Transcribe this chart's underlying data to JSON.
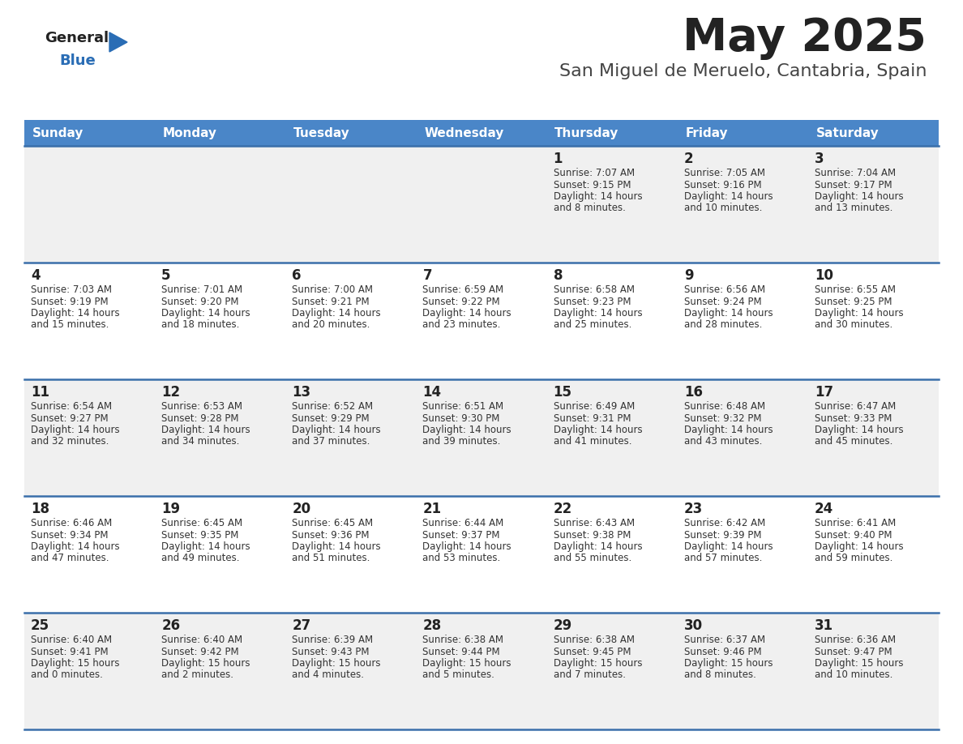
{
  "title": "May 2025",
  "subtitle": "San Miguel de Meruelo, Cantabria, Spain",
  "days_of_week": [
    "Sunday",
    "Monday",
    "Tuesday",
    "Wednesday",
    "Thursday",
    "Friday",
    "Saturday"
  ],
  "header_bg": "#4a86c8",
  "header_text": "#ffffff",
  "row_bg_odd": "#f0f0f0",
  "row_bg_even": "#ffffff",
  "separator_color": "#3a6faa",
  "day_num_color": "#222222",
  "cell_text_color": "#333333",
  "title_color": "#222222",
  "subtitle_color": "#444444",
  "logo_general_color": "#222222",
  "logo_blue_color": "#2a6db5",
  "calendar": [
    [
      null,
      null,
      null,
      null,
      {
        "day": 1,
        "sunrise": "7:07 AM",
        "sunset": "9:15 PM",
        "daylight_h": "14 hours",
        "daylight_m": "and 8 minutes."
      },
      {
        "day": 2,
        "sunrise": "7:05 AM",
        "sunset": "9:16 PM",
        "daylight_h": "14 hours",
        "daylight_m": "and 10 minutes."
      },
      {
        "day": 3,
        "sunrise": "7:04 AM",
        "sunset": "9:17 PM",
        "daylight_h": "14 hours",
        "daylight_m": "and 13 minutes."
      }
    ],
    [
      {
        "day": 4,
        "sunrise": "7:03 AM",
        "sunset": "9:19 PM",
        "daylight_h": "14 hours",
        "daylight_m": "and 15 minutes."
      },
      {
        "day": 5,
        "sunrise": "7:01 AM",
        "sunset": "9:20 PM",
        "daylight_h": "14 hours",
        "daylight_m": "and 18 minutes."
      },
      {
        "day": 6,
        "sunrise": "7:00 AM",
        "sunset": "9:21 PM",
        "daylight_h": "14 hours",
        "daylight_m": "and 20 minutes."
      },
      {
        "day": 7,
        "sunrise": "6:59 AM",
        "sunset": "9:22 PM",
        "daylight_h": "14 hours",
        "daylight_m": "and 23 minutes."
      },
      {
        "day": 8,
        "sunrise": "6:58 AM",
        "sunset": "9:23 PM",
        "daylight_h": "14 hours",
        "daylight_m": "and 25 minutes."
      },
      {
        "day": 9,
        "sunrise": "6:56 AM",
        "sunset": "9:24 PM",
        "daylight_h": "14 hours",
        "daylight_m": "and 28 minutes."
      },
      {
        "day": 10,
        "sunrise": "6:55 AM",
        "sunset": "9:25 PM",
        "daylight_h": "14 hours",
        "daylight_m": "and 30 minutes."
      }
    ],
    [
      {
        "day": 11,
        "sunrise": "6:54 AM",
        "sunset": "9:27 PM",
        "daylight_h": "14 hours",
        "daylight_m": "and 32 minutes."
      },
      {
        "day": 12,
        "sunrise": "6:53 AM",
        "sunset": "9:28 PM",
        "daylight_h": "14 hours",
        "daylight_m": "and 34 minutes."
      },
      {
        "day": 13,
        "sunrise": "6:52 AM",
        "sunset": "9:29 PM",
        "daylight_h": "14 hours",
        "daylight_m": "and 37 minutes."
      },
      {
        "day": 14,
        "sunrise": "6:51 AM",
        "sunset": "9:30 PM",
        "daylight_h": "14 hours",
        "daylight_m": "and 39 minutes."
      },
      {
        "day": 15,
        "sunrise": "6:49 AM",
        "sunset": "9:31 PM",
        "daylight_h": "14 hours",
        "daylight_m": "and 41 minutes."
      },
      {
        "day": 16,
        "sunrise": "6:48 AM",
        "sunset": "9:32 PM",
        "daylight_h": "14 hours",
        "daylight_m": "and 43 minutes."
      },
      {
        "day": 17,
        "sunrise": "6:47 AM",
        "sunset": "9:33 PM",
        "daylight_h": "14 hours",
        "daylight_m": "and 45 minutes."
      }
    ],
    [
      {
        "day": 18,
        "sunrise": "6:46 AM",
        "sunset": "9:34 PM",
        "daylight_h": "14 hours",
        "daylight_m": "and 47 minutes."
      },
      {
        "day": 19,
        "sunrise": "6:45 AM",
        "sunset": "9:35 PM",
        "daylight_h": "14 hours",
        "daylight_m": "and 49 minutes."
      },
      {
        "day": 20,
        "sunrise": "6:45 AM",
        "sunset": "9:36 PM",
        "daylight_h": "14 hours",
        "daylight_m": "and 51 minutes."
      },
      {
        "day": 21,
        "sunrise": "6:44 AM",
        "sunset": "9:37 PM",
        "daylight_h": "14 hours",
        "daylight_m": "and 53 minutes."
      },
      {
        "day": 22,
        "sunrise": "6:43 AM",
        "sunset": "9:38 PM",
        "daylight_h": "14 hours",
        "daylight_m": "and 55 minutes."
      },
      {
        "day": 23,
        "sunrise": "6:42 AM",
        "sunset": "9:39 PM",
        "daylight_h": "14 hours",
        "daylight_m": "and 57 minutes."
      },
      {
        "day": 24,
        "sunrise": "6:41 AM",
        "sunset": "9:40 PM",
        "daylight_h": "14 hours",
        "daylight_m": "and 59 minutes."
      }
    ],
    [
      {
        "day": 25,
        "sunrise": "6:40 AM",
        "sunset": "9:41 PM",
        "daylight_h": "15 hours",
        "daylight_m": "and 0 minutes."
      },
      {
        "day": 26,
        "sunrise": "6:40 AM",
        "sunset": "9:42 PM",
        "daylight_h": "15 hours",
        "daylight_m": "and 2 minutes."
      },
      {
        "day": 27,
        "sunrise": "6:39 AM",
        "sunset": "9:43 PM",
        "daylight_h": "15 hours",
        "daylight_m": "and 4 minutes."
      },
      {
        "day": 28,
        "sunrise": "6:38 AM",
        "sunset": "9:44 PM",
        "daylight_h": "15 hours",
        "daylight_m": "and 5 minutes."
      },
      {
        "day": 29,
        "sunrise": "6:38 AM",
        "sunset": "9:45 PM",
        "daylight_h": "15 hours",
        "daylight_m": "and 7 minutes."
      },
      {
        "day": 30,
        "sunrise": "6:37 AM",
        "sunset": "9:46 PM",
        "daylight_h": "15 hours",
        "daylight_m": "and 8 minutes."
      },
      {
        "day": 31,
        "sunrise": "6:36 AM",
        "sunset": "9:47 PM",
        "daylight_h": "15 hours",
        "daylight_m": "and 10 minutes."
      }
    ]
  ]
}
